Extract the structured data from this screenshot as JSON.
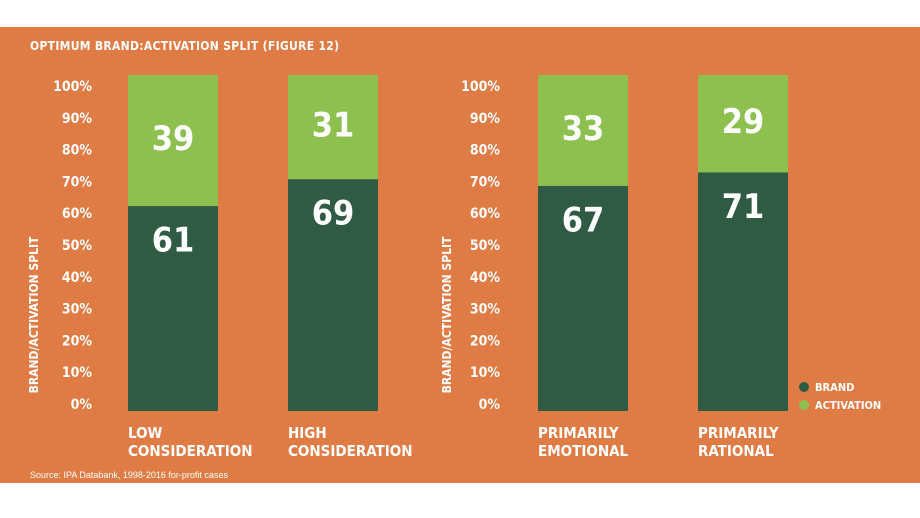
{
  "figure": {
    "title": "OPTIMUM BRAND:ACTIVATION SPLIT (FIGURE 12)",
    "source": "Source: IPA Databank, 1998-2016 for-profit cases"
  },
  "colors": {
    "background": "#df7c45",
    "brand": "#2f5a43",
    "activation": "#8dc04f",
    "text": "#ffffff"
  },
  "chart_data": [
    {
      "type": "bar",
      "stacked": true,
      "ylabel": "BRAND/ACTIVATION SPLIT",
      "ylim": [
        0,
        100
      ],
      "yticks": [
        "0%",
        "10%",
        "20%",
        "30%",
        "40%",
        "50%",
        "60%",
        "70%",
        "80%",
        "90%",
        "100%"
      ],
      "categories": [
        [
          "LOW",
          "CONSIDERATION"
        ],
        [
          "HIGH",
          "CONSIDERATION"
        ]
      ],
      "series": [
        {
          "name": "BRAND",
          "values": [
            61,
            69
          ]
        },
        {
          "name": "ACTIVATION",
          "values": [
            39,
            31
          ]
        }
      ]
    },
    {
      "type": "bar",
      "stacked": true,
      "ylabel": "BRAND/ACTIVATION SPLIT",
      "ylim": [
        0,
        100
      ],
      "yticks": [
        "0%",
        "10%",
        "20%",
        "30%",
        "40%",
        "50%",
        "60%",
        "70%",
        "80%",
        "90%",
        "100%"
      ],
      "categories": [
        [
          "PRIMARILY",
          "EMOTIONAL"
        ],
        [
          "PRIMARILY",
          "RATIONAL"
        ]
      ],
      "series": [
        {
          "name": "BRAND",
          "values": [
            67,
            71
          ]
        },
        {
          "name": "ACTIVATION",
          "values": [
            33,
            29
          ]
        }
      ]
    }
  ],
  "legend": {
    "position": "bottom-right",
    "items": [
      {
        "label": "BRAND",
        "color": "#2f5a43"
      },
      {
        "label": "ACTIVATION",
        "color": "#8dc04f"
      }
    ]
  }
}
